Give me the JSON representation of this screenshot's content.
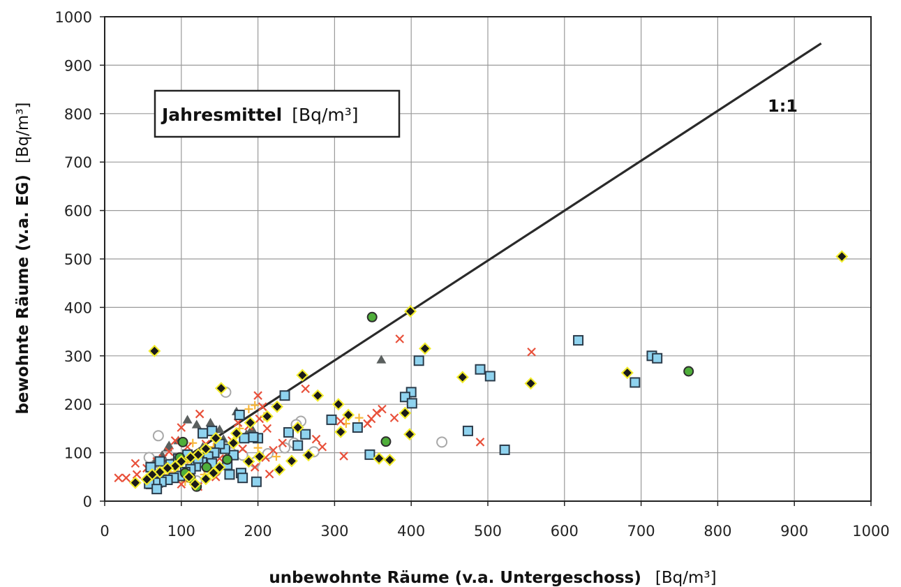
{
  "chart_data": {
    "type": "scatter",
    "title": "",
    "legend_box": {
      "title": "Jahresmittel",
      "unit": "[Bq/m³]",
      "placement": "top-left"
    },
    "xlabel": "unbewohnte Räume (v.a. Untergeschoss)",
    "xlabel_unit": "[Bq/m³]",
    "ylabel": "bewohnte Räume (v.a. EG)",
    "ylabel_unit": "[Bq/m³]",
    "xlim": [
      0,
      1000
    ],
    "ylim": [
      0,
      1000
    ],
    "xticks": [
      "0",
      "100",
      "200",
      "300",
      "400",
      "500",
      "600",
      "700",
      "800",
      "900",
      "1000"
    ],
    "yticks": [
      "0",
      "100",
      "200",
      "300",
      "400",
      "500",
      "600",
      "700",
      "800",
      "900",
      "1000"
    ],
    "grid": true,
    "reference_line": {
      "label": "1:1",
      "x": [
        55,
        935
      ],
      "y": [
        38,
        945
      ]
    },
    "colors": {
      "line": "#2a2a2a",
      "diamond_fill": "#1a1a1a",
      "diamond_halo": "#f2ec2a",
      "square_fill": "#8fd3ef",
      "square_edge": "#2b3b4a",
      "cross": "#e8503a",
      "circle_fill": "#4fae3a",
      "circle_edge": "#2d2d2d",
      "triangle": "#5a5f5e",
      "plus": "#f7b73a",
      "open_circle": "#a8a8a8"
    },
    "series": [
      {
        "marker": "diamond",
        "points": [
          [
            65,
            310
          ],
          [
            962,
            505
          ],
          [
            399,
            392
          ],
          [
            418,
            315
          ],
          [
            258,
            260
          ],
          [
            278,
            218
          ],
          [
            305,
            200
          ],
          [
            318,
            178
          ],
          [
            252,
            152
          ],
          [
            392,
            182
          ],
          [
            398,
            138
          ],
          [
            358,
            88
          ],
          [
            372,
            85
          ],
          [
            266,
            95
          ],
          [
            308,
            143
          ],
          [
            467,
            256
          ],
          [
            556,
            243
          ],
          [
            682,
            265
          ],
          [
            152,
            233
          ],
          [
            225,
            195
          ],
          [
            212,
            175
          ],
          [
            190,
            162
          ],
          [
            172,
            140
          ],
          [
            168,
            120
          ],
          [
            145,
            130
          ],
          [
            132,
            108
          ],
          [
            122,
            96
          ],
          [
            112,
            90
          ],
          [
            100,
            82
          ],
          [
            92,
            72
          ],
          [
            82,
            68
          ],
          [
            72,
            60
          ],
          [
            62,
            55
          ],
          [
            55,
            45
          ],
          [
            40,
            38
          ],
          [
            110,
            50
          ],
          [
            132,
            46
          ],
          [
            228,
            65
          ],
          [
            244,
            83
          ],
          [
            150,
            70
          ],
          [
            188,
            82
          ],
          [
            118,
            35
          ],
          [
            142,
            58
          ],
          [
            202,
            92
          ]
        ]
      },
      {
        "marker": "square",
        "points": [
          [
            618,
            332
          ],
          [
            714,
            300
          ],
          [
            721,
            295
          ],
          [
            692,
            245
          ],
          [
            490,
            272
          ],
          [
            503,
            258
          ],
          [
            410,
            290
          ],
          [
            400,
            225
          ],
          [
            392,
            215
          ],
          [
            401,
            202
          ],
          [
            474,
            145
          ],
          [
            522,
            106
          ],
          [
            346,
            96
          ],
          [
            330,
            152
          ],
          [
            296,
            168
          ],
          [
            262,
            138
          ],
          [
            252,
            115
          ],
          [
            240,
            142
          ],
          [
            235,
            218
          ],
          [
            200,
            130
          ],
          [
            194,
            132
          ],
          [
            182,
            130
          ],
          [
            176,
            178
          ],
          [
            168,
            95
          ],
          [
            157,
            108
          ],
          [
            150,
            118
          ],
          [
            143,
            100
          ],
          [
            135,
            92
          ],
          [
            127,
            80
          ],
          [
            119,
            72
          ],
          [
            112,
            66
          ],
          [
            105,
            60
          ],
          [
            98,
            52
          ],
          [
            90,
            48
          ],
          [
            82,
            44
          ],
          [
            74,
            40
          ],
          [
            66,
            38
          ],
          [
            58,
            36
          ],
          [
            60,
            70
          ],
          [
            72,
            82
          ],
          [
            86,
            76
          ],
          [
            96,
            88
          ],
          [
            108,
            96
          ],
          [
            122,
            88
          ],
          [
            140,
            78
          ],
          [
            160,
            75
          ],
          [
            178,
            58
          ],
          [
            198,
            40
          ],
          [
            180,
            48
          ],
          [
            163,
            55
          ],
          [
            140,
            145
          ],
          [
            128,
            140
          ],
          [
            68,
            25
          ]
        ]
      },
      {
        "marker": "cross",
        "points": [
          [
            385,
            335
          ],
          [
            557,
            308
          ],
          [
            490,
            122
          ],
          [
            312,
            93
          ],
          [
            348,
            170
          ],
          [
            343,
            160
          ],
          [
            355,
            182
          ],
          [
            362,
            190
          ],
          [
            378,
            172
          ],
          [
            308,
            165
          ],
          [
            284,
            112
          ],
          [
            276,
            128
          ],
          [
            262,
            232
          ],
          [
            212,
            150
          ],
          [
            200,
            218
          ],
          [
            206,
            195
          ],
          [
            220,
            105
          ],
          [
            210,
            90
          ],
          [
            196,
            70
          ],
          [
            188,
            155
          ],
          [
            174,
            162
          ],
          [
            166,
            125
          ],
          [
            158,
            108
          ],
          [
            150,
            88
          ],
          [
            140,
            100
          ],
          [
            132,
            118
          ],
          [
            124,
            180
          ],
          [
            116,
            95
          ],
          [
            108,
            112
          ],
          [
            100,
            152
          ],
          [
            92,
            125
          ],
          [
            84,
            102
          ],
          [
            76,
            88
          ],
          [
            68,
            82
          ],
          [
            55,
            68
          ],
          [
            42,
            55
          ],
          [
            28,
            48
          ],
          [
            18,
            48
          ],
          [
            40,
            78
          ],
          [
            100,
            35
          ],
          [
            122,
            30
          ],
          [
            145,
            50
          ],
          [
            180,
            108
          ],
          [
            215,
            56
          ],
          [
            232,
            120
          ],
          [
            202,
            170
          ]
        ]
      },
      {
        "marker": "circle",
        "points": [
          [
            349,
            380
          ],
          [
            762,
            268
          ],
          [
            367,
            123
          ],
          [
            102,
            122
          ],
          [
            160,
            86
          ],
          [
            133,
            70
          ],
          [
            105,
            58
          ],
          [
            120,
            30
          ],
          [
            98,
            90
          ],
          [
            112,
            48
          ]
        ]
      },
      {
        "marker": "triangle",
        "points": [
          [
            361,
            292
          ],
          [
            108,
            168
          ],
          [
            150,
            148
          ],
          [
            172,
            185
          ],
          [
            192,
            150
          ],
          [
            120,
            158
          ],
          [
            96,
            125
          ],
          [
            84,
            115
          ],
          [
            75,
            95
          ],
          [
            66,
            82
          ],
          [
            60,
            32
          ],
          [
            70,
            35
          ],
          [
            88,
            48
          ],
          [
            82,
            110
          ],
          [
            138,
            162
          ],
          [
            155,
            128
          ],
          [
            128,
            112
          ],
          [
            185,
            138
          ]
        ]
      },
      {
        "marker": "plus",
        "points": [
          [
            332,
            172
          ],
          [
            315,
            160
          ],
          [
            200,
            110
          ],
          [
            208,
            175
          ],
          [
            188,
            190
          ],
          [
            176,
            150
          ],
          [
            122,
            100
          ],
          [
            115,
            120
          ],
          [
            108,
            80
          ],
          [
            96,
            72
          ],
          [
            86,
            60
          ],
          [
            78,
            55
          ],
          [
            142,
            112
          ],
          [
            158,
            92
          ],
          [
            224,
            92
          ],
          [
            196,
            198
          ],
          [
            130,
            55
          ],
          [
            105,
            40
          ]
        ]
      },
      {
        "marker": "open-circle",
        "points": [
          [
            440,
            122
          ],
          [
            273,
            102
          ],
          [
            256,
            165
          ],
          [
            250,
            158
          ],
          [
            247,
            120
          ],
          [
            213,
            98
          ],
          [
            196,
            80
          ],
          [
            158,
            225
          ],
          [
            70,
            135
          ],
          [
            58,
            90
          ],
          [
            180,
            95
          ],
          [
            145,
            62
          ],
          [
            120,
            42
          ],
          [
            108,
            55
          ],
          [
            90,
            78
          ],
          [
            130,
            88
          ],
          [
            165,
            100
          ],
          [
            235,
            110
          ],
          [
            66,
            60
          ]
        ]
      }
    ]
  }
}
